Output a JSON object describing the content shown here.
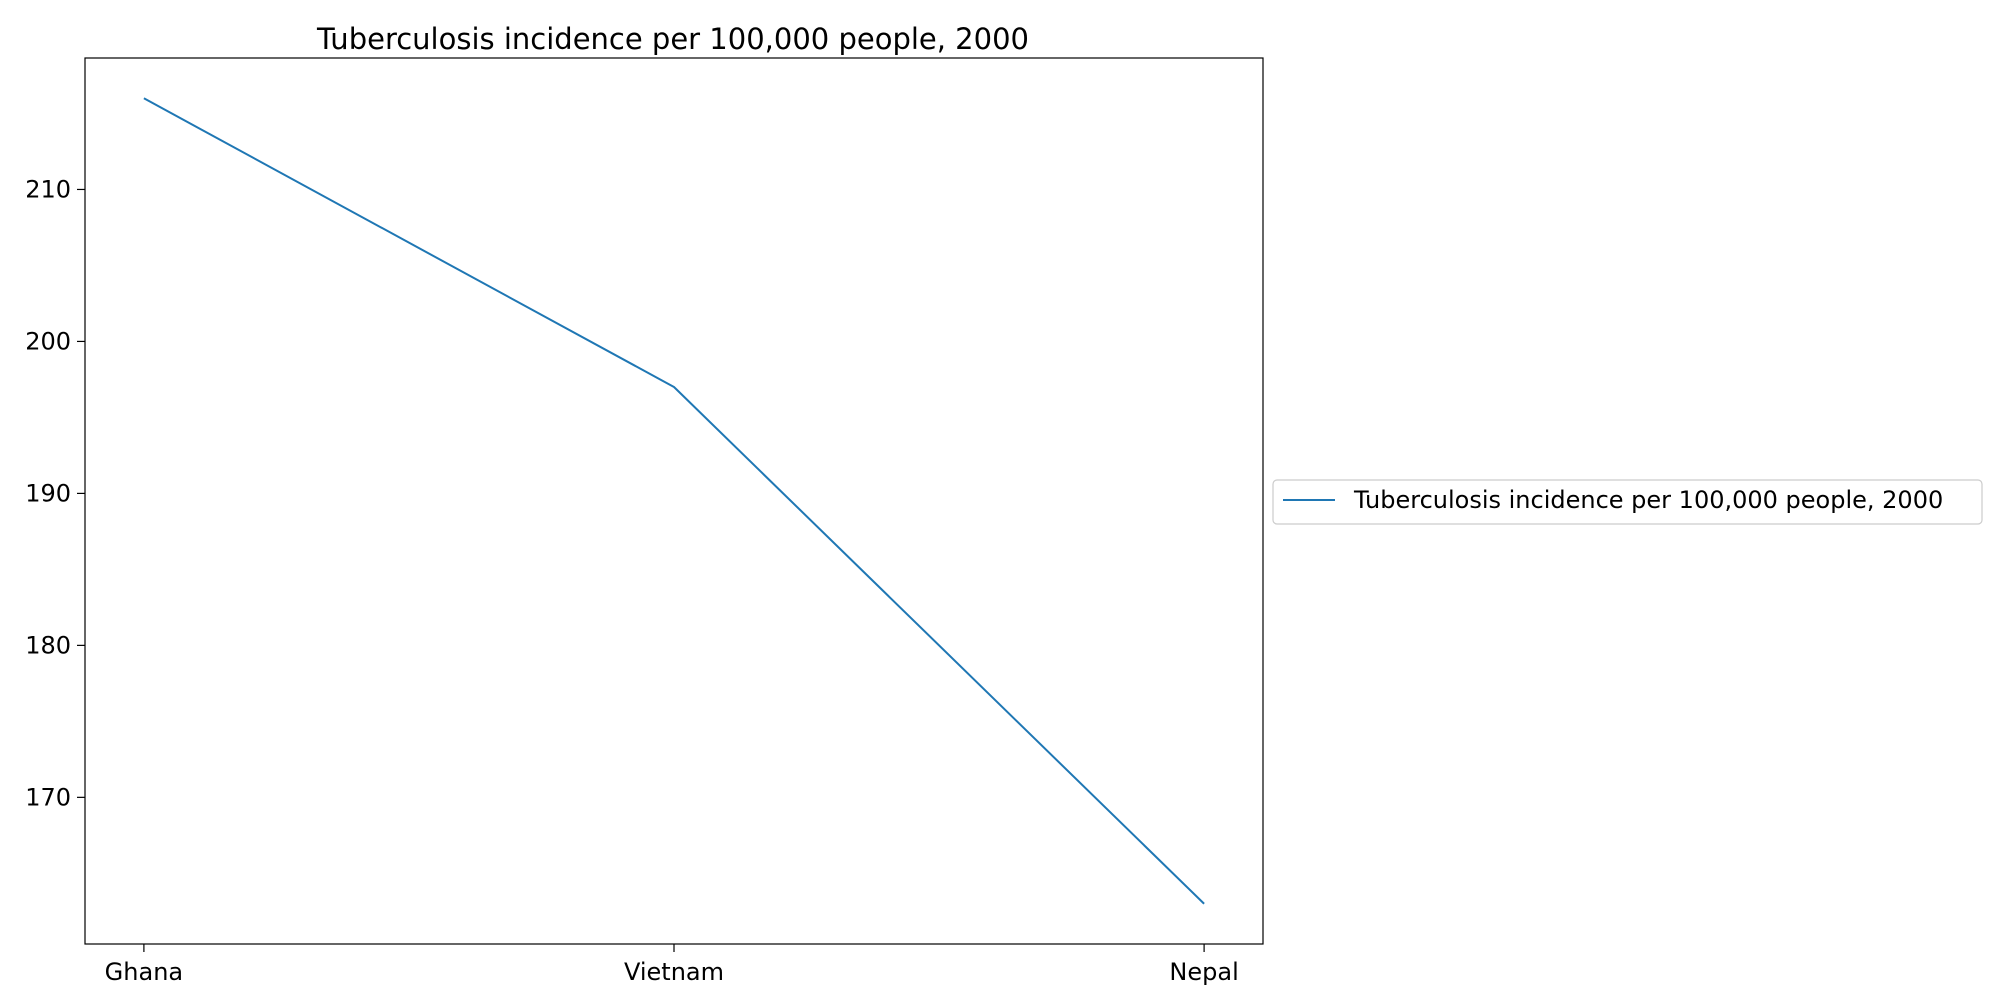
{
  "chart_data": {
    "type": "line",
    "title": "Tuberculosis incidence per 100,000 people, 2000",
    "xlabel": "",
    "ylabel": "",
    "categories": [
      "Ghana",
      "Vietnam",
      "Nepal"
    ],
    "series": [
      {
        "name": "Tuberculosis incidence per 100,000 people, 2000",
        "values": [
          216,
          197,
          163
        ],
        "color": "#1f77b4"
      }
    ],
    "yticks": [
      170,
      180,
      190,
      200,
      210
    ],
    "ylim": [
      160.35,
      218.65
    ],
    "grid": false,
    "legend_position": "center-right, outside plot"
  }
}
